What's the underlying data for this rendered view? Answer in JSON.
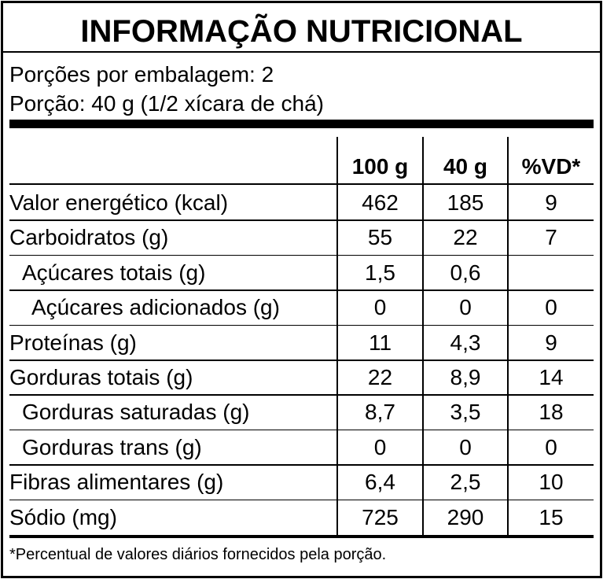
{
  "title": "INFORMAÇÃO NUTRICIONAL",
  "servings": [
    "Porções por embalagem: 2",
    "Porção: 40 g (1/2 xícara de chá)"
  ],
  "table": {
    "header": [
      "100 g",
      "40 g",
      "%VD*"
    ],
    "rows": [
      [
        "Valor energético (kcal)",
        "462",
        "185",
        "9"
      ],
      [
        "Carboidratos (g)",
        "55",
        "22",
        "7"
      ],
      [
        "Açúcares totais (g)",
        "1,5",
        "0,6",
        null
      ],
      [
        "Açúcares adicionados (g)",
        "0",
        "0",
        "0"
      ],
      [
        "Proteínas (g)",
        "11",
        "4,3",
        "9"
      ],
      [
        "Gorduras totais (g)",
        "22",
        "8,9",
        "14"
      ],
      [
        "Gorduras saturadas (g)",
        "8,7",
        "3,5",
        "18"
      ],
      [
        "Gorduras trans (g)",
        "0",
        "0",
        "0"
      ],
      [
        "Fibras alimentares (g)",
        "6,4",
        "2,5",
        "10"
      ],
      [
        "Sódio (mg)",
        "725",
        "290",
        "15"
      ]
    ]
  },
  "footnote": "*Percentual de valores diários fornecidos pela porção."
}
